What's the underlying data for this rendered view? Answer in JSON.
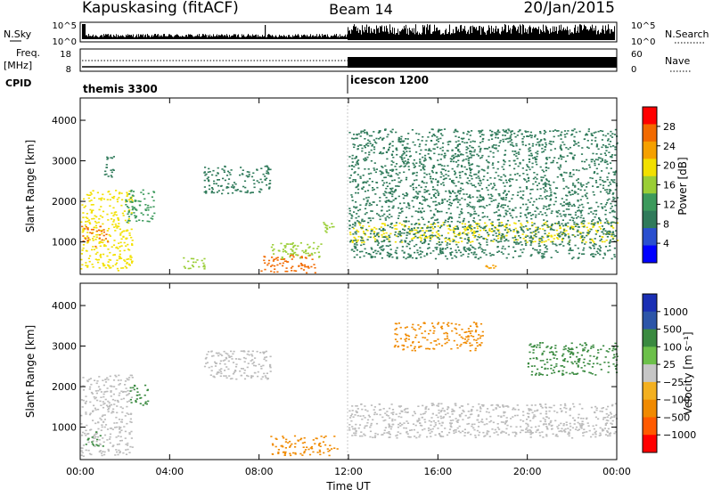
{
  "header": {
    "radar": "Kapuskasing (fitACF)",
    "beam": "Beam 14",
    "date": "20/Jan/2015"
  },
  "strip_labels": {
    "nsky": "N.Sky",
    "nsky_ticks": [
      "10^5",
      "10^0"
    ],
    "nsearch": "N.Search",
    "nsearch_ticks": [
      "10^5",
      "10^0"
    ],
    "freq_line1": "Freq.",
    "freq_line2": "[MHz]",
    "freq_ticks": [
      "18",
      "8"
    ],
    "nave": "Nave",
    "nave_ticks": [
      "60",
      "0"
    ],
    "cpid": "CPID"
  },
  "cpid_segments": [
    {
      "start_hours": 0,
      "label": "themis 3300"
    },
    {
      "start_hours": 12,
      "label": "icescon 1200"
    }
  ],
  "colors": {
    "power": [
      "#0000ff",
      "#2a4fcf",
      "#2f7a5a",
      "#3c9a5c",
      "#9ace36",
      "#f2e000",
      "#f5a000",
      "#f26a00",
      "#ff0000"
    ],
    "velocity": [
      "#1a2fb4",
      "#2c55a8",
      "#3a8a40",
      "#6cc04a",
      "#c6c6c6",
      "#f3b020",
      "#f08a00",
      "#ff5a00",
      "#ff0000"
    ],
    "ground_scatter": "#bbbbbb"
  },
  "chart_data": [
    {
      "type": "heatmap",
      "panel": "power",
      "ylabel": "Slant Range [km]",
      "y_ticks": [
        "1000",
        "2000",
        "3000",
        "4000"
      ],
      "ylim": [
        200,
        4550
      ],
      "xlim_hours": [
        0,
        24
      ],
      "colorbar_label": "Power [dB]",
      "colorbar_ticks": [
        "4",
        "8",
        "12",
        "16",
        "20",
        "24",
        "28"
      ],
      "colorbar_range": [
        0,
        32
      ],
      "features": [
        {
          "t0": 0.0,
          "t1": 2.3,
          "r0": 300,
          "r1": 2300,
          "level": 20
        },
        {
          "t0": 0.0,
          "t1": 1.2,
          "r0": 900,
          "r1": 1400,
          "level": 28
        },
        {
          "t0": 1.0,
          "t1": 1.5,
          "r0": 2600,
          "r1": 3150,
          "level": 8
        },
        {
          "t0": 2.0,
          "t1": 3.3,
          "r0": 1500,
          "r1": 2300,
          "level": 12
        },
        {
          "t0": 4.5,
          "t1": 5.6,
          "r0": 350,
          "r1": 650,
          "level": 16
        },
        {
          "t0": 5.5,
          "t1": 8.5,
          "r0": 2200,
          "r1": 2900,
          "level": 8
        },
        {
          "t0": 8.0,
          "t1": 10.5,
          "r0": 250,
          "r1": 700,
          "level": 26
        },
        {
          "t0": 8.5,
          "t1": 10.8,
          "r0": 600,
          "r1": 1000,
          "level": 16
        },
        {
          "t0": 10.8,
          "t1": 11.4,
          "r0": 1200,
          "r1": 1500,
          "level": 16
        },
        {
          "t0": 12.0,
          "t1": 24.0,
          "r0": 1000,
          "r1": 1500,
          "level": 20
        },
        {
          "t0": 12.0,
          "t1": 24.0,
          "r0": 600,
          "r1": 3800,
          "level": 8
        },
        {
          "t0": 18.0,
          "t1": 19.0,
          "r0": 300,
          "r1": 450,
          "level": 24
        }
      ]
    },
    {
      "type": "heatmap",
      "panel": "velocity",
      "ylabel": "Slant Range [km]",
      "y_ticks": [
        "1000",
        "2000",
        "3000",
        "4000"
      ],
      "ylim": [
        200,
        4550
      ],
      "xlim_hours": [
        0,
        24
      ],
      "xlabel": "Time UT",
      "x_ticks": [
        "00:00",
        "04:00",
        "08:00",
        "12:00",
        "16:00",
        "20:00",
        "00:00"
      ],
      "colorbar_label": "Velocity [m s⁻¹]",
      "colorbar_ticks": [
        "1000",
        "500",
        "100",
        "25",
        "−25",
        "−100",
        "−500",
        "−1000"
      ],
      "features": [
        {
          "t0": 0.0,
          "t1": 2.3,
          "r0": 300,
          "r1": 2300,
          "kind": "ground"
        },
        {
          "t0": 0.2,
          "t1": 1.0,
          "r0": 550,
          "r1": 900,
          "velocity": 150
        },
        {
          "t0": 2.2,
          "t1": 3.0,
          "r0": 1550,
          "r1": 2050,
          "velocity": 150
        },
        {
          "t0": 5.5,
          "t1": 8.5,
          "r0": 2200,
          "r1": 2900,
          "kind": "ground"
        },
        {
          "t0": 8.5,
          "t1": 11.5,
          "r0": 300,
          "r1": 800,
          "velocity": -100
        },
        {
          "t0": 12.0,
          "t1": 24.0,
          "r0": 750,
          "r1": 1600,
          "kind": "ground"
        },
        {
          "t0": 20.0,
          "t1": 24.0,
          "r0": 2300,
          "r1": 3100,
          "velocity": 200
        },
        {
          "t0": 14.0,
          "t1": 18.0,
          "r0": 2900,
          "r1": 3600,
          "velocity": -150
        }
      ]
    }
  ]
}
